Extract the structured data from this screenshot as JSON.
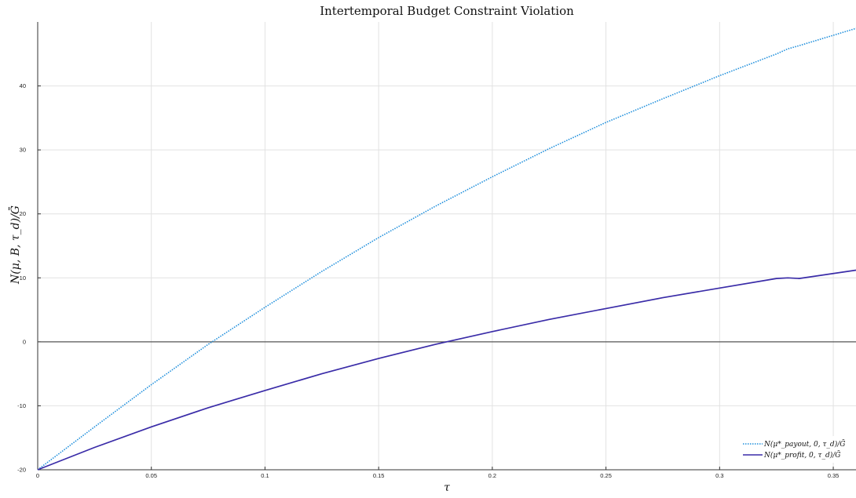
{
  "chart_data": {
    "type": "line",
    "title": "Intertemporal Budget Constraint Violation",
    "xlabel": "τ",
    "ylabel": "N(μ, B, τ_d)/Ḡ",
    "xlim": [
      0,
      0.36
    ],
    "ylim": [
      -20,
      50
    ],
    "xticks": [
      0,
      0.05,
      0.1,
      0.15,
      0.2,
      0.25,
      0.3,
      0.35
    ],
    "xtick_labels": [
      "0",
      "0.05",
      "0.1",
      "0.15",
      "0.2",
      "0.25",
      "0.3",
      "0.35"
    ],
    "yticks": [
      -20,
      -10,
      0,
      10,
      20,
      30,
      40
    ],
    "ytick_labels": [
      "-20",
      "-10",
      "0",
      "10",
      "20",
      "30",
      "40"
    ],
    "grid": true,
    "zero_line": true,
    "legend_position": "bottom-right",
    "series": [
      {
        "name": "N(μ*_payout, 0, τ_d)/Ḡ",
        "color": "#1f8fdc",
        "style": "dotted",
        "x": [
          0,
          0.025,
          0.05,
          0.075,
          0.1,
          0.125,
          0.15,
          0.175,
          0.2,
          0.225,
          0.25,
          0.275,
          0.3,
          0.325,
          0.33,
          0.335,
          0.36
        ],
        "y": [
          -20,
          -13.3,
          -6.7,
          -0.4,
          5.4,
          11,
          16.3,
          21.2,
          25.8,
          30.2,
          34.3,
          38,
          41.6,
          45,
          45.8,
          46.3,
          49
        ]
      },
      {
        "name": "N(μ*_profit, 0, τ_d)/Ḡ",
        "color": "#3a2ca8",
        "style": "solid",
        "x": [
          0,
          0.025,
          0.05,
          0.075,
          0.1,
          0.125,
          0.15,
          0.175,
          0.2,
          0.225,
          0.25,
          0.275,
          0.3,
          0.325,
          0.33,
          0.335,
          0.36
        ],
        "y": [
          -20,
          -16.5,
          -13.3,
          -10.3,
          -7.6,
          -5,
          -2.6,
          -0.4,
          1.6,
          3.5,
          5.2,
          6.9,
          8.4,
          9.9,
          10,
          9.9,
          11.2
        ]
      }
    ]
  }
}
